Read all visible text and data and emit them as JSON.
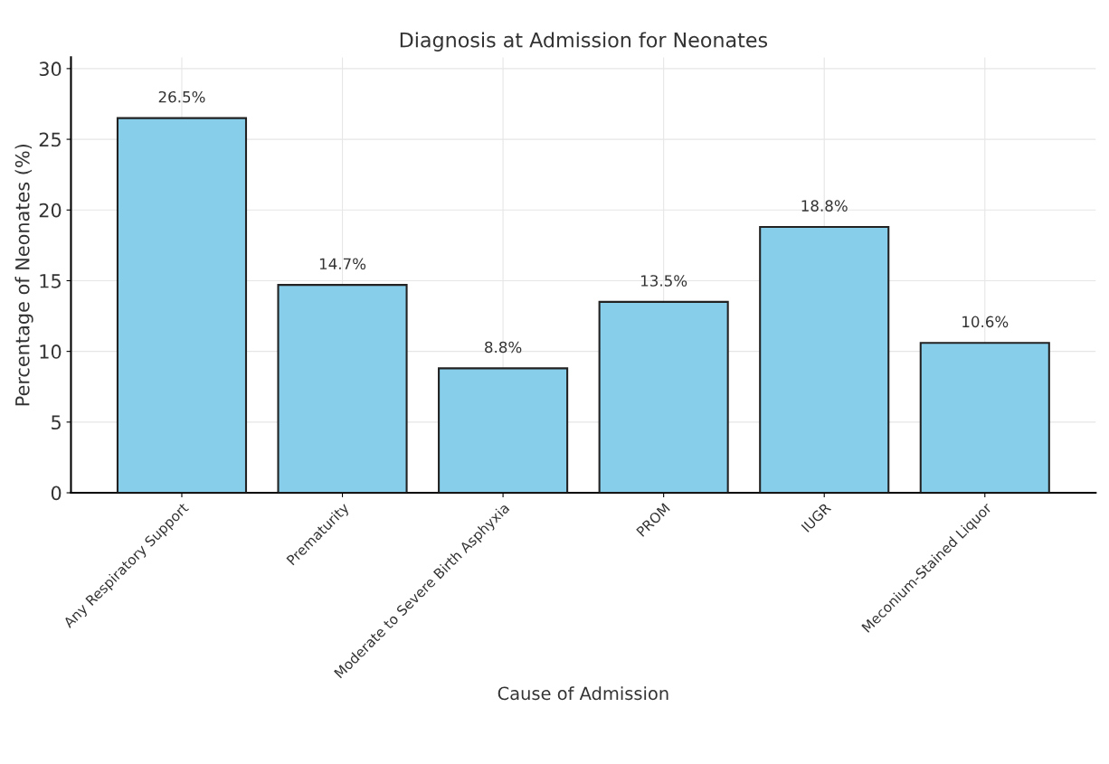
{
  "chart_data": {
    "type": "bar",
    "title": "Diagnosis at Admission for Neonates",
    "xlabel": "Cause of Admission",
    "ylabel": "Percentage of Neonates (%)",
    "categories": [
      "Any Respiratory Support",
      "Prematurity",
      "Moderate to Severe Birth Asphyxia",
      "PROM",
      "IUGR",
      "Meconium-Stained Liquor"
    ],
    "values": [
      26.5,
      14.7,
      8.8,
      13.5,
      18.8,
      10.6
    ],
    "value_labels": [
      "26.5%",
      "14.7%",
      "8.8%",
      "13.5%",
      "18.8%",
      "10.6%"
    ],
    "color": "#87ceeb",
    "ylim": [
      0,
      30.8
    ],
    "yticks": [
      0,
      5,
      10,
      15,
      20,
      25,
      30
    ],
    "grid": true
  }
}
